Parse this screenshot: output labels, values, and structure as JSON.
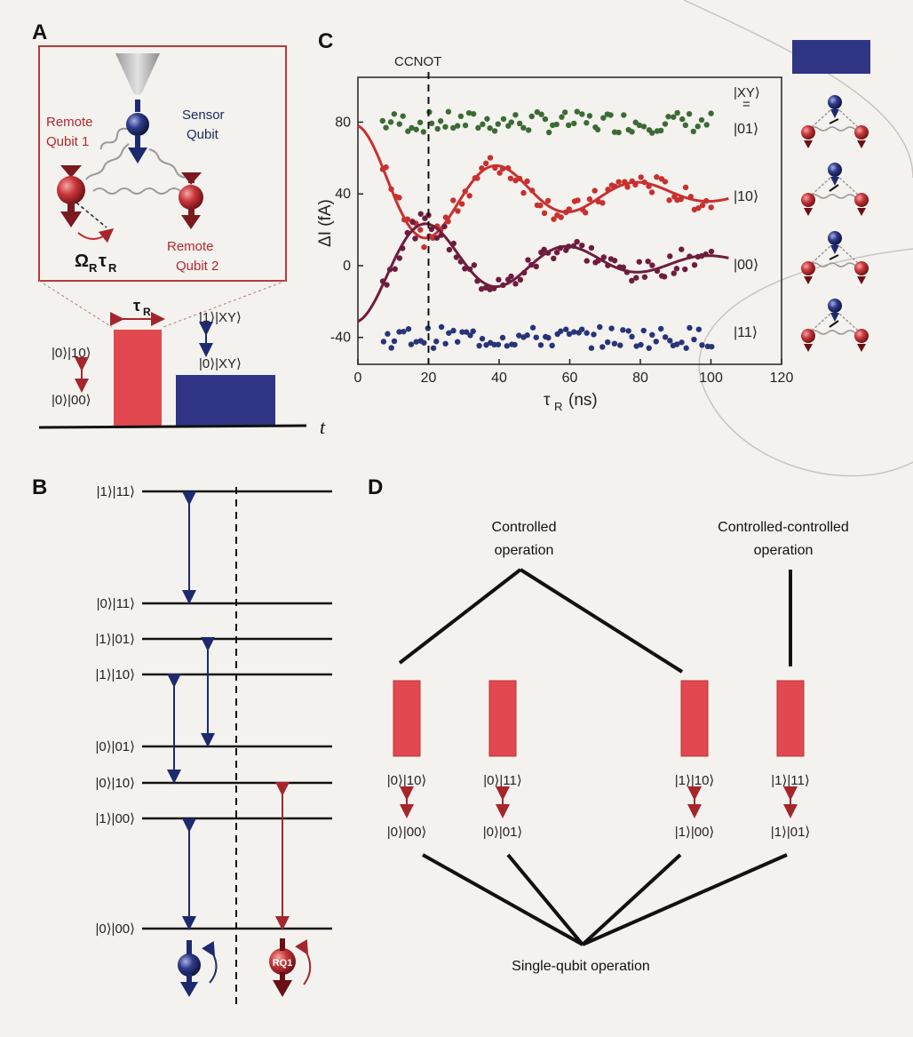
{
  "panels": {
    "a": "A",
    "b": "B",
    "c": "C",
    "d": "D"
  },
  "panel_a": {
    "sensor_label_1": "Sensor",
    "sensor_label_2": "Qubit",
    "remote1_label_1": "Remote",
    "remote1_label_2": "Qubit 1",
    "remote2_label_1": "Remote",
    "remote2_label_2": "Qubit 2",
    "omega_main": "Ω",
    "omega_sub": "R",
    "tau_main": "τ",
    "tau_sub": "R",
    "pulse_tau_main": "τ",
    "pulse_tau_sub": "R",
    "red_state_top": "|0⟩|10⟩",
    "red_state_bottom": "|0⟩|00⟩",
    "blue_state_top": "|1⟩|XY⟩",
    "blue_state_bottom": "|0⟩|XY⟩",
    "time_axis": "t",
    "colors": {
      "frame": "#b43a3a",
      "red_pulse": "#e2484f",
      "blue_pulse": "#2f3584"
    }
  },
  "panel_b": {
    "levels": [
      "|1⟩|11⟩",
      "|0⟩|11⟩",
      "|1⟩|01⟩",
      "|1⟩|10⟩",
      "|0⟩|01⟩",
      "|0⟩|10⟩",
      "|1⟩|00⟩",
      "|0⟩|00⟩"
    ],
    "rq1_label": "RQ1",
    "colors": {
      "sensor": "#1e2a6e",
      "remote": "#a4262c"
    }
  },
  "chart_data": {
    "type": "scatter",
    "title": "CCNOT",
    "xlabel_main": "τ",
    "xlabel_sub": "R",
    "xlabel_unit": "(ns)",
    "ylabel": "ΔI (fA)",
    "xlim": [
      0,
      120
    ],
    "ylim": [
      -55,
      105
    ],
    "xticks": [
      "0",
      "20",
      "40",
      "60",
      "80",
      "100",
      "120"
    ],
    "yticks": [
      "-40",
      "0",
      "40",
      "80"
    ],
    "marker_x": 20,
    "state_header": "|XY⟩",
    "state_eq": "=",
    "series": [
      {
        "name": "|01⟩",
        "color": "#3b6b35",
        "level": 80,
        "noise": 6,
        "fit": false
      },
      {
        "name": "|10⟩",
        "color": "#c8302f",
        "level": 40,
        "fit": true,
        "amp": -38,
        "decay": 45,
        "period": 40,
        "phase": 0
      },
      {
        "name": "|00⟩",
        "color": "#6e1c3e",
        "level": 2,
        "fit": true,
        "amp": 33,
        "decay": 45,
        "period": 40,
        "phase": 0
      },
      {
        "name": "|11⟩",
        "color": "#28347a",
        "level": -40,
        "noise": 6,
        "fit": false
      }
    ],
    "x_start": 7,
    "x_end": 100,
    "points_per_series": 80
  },
  "panel_d": {
    "controlled": [
      "Controlled",
      "operation"
    ],
    "cc": [
      "Controlled-controlled",
      "operation"
    ],
    "single": "Single-qubit operation",
    "pulses": [
      {
        "top": "|0⟩|10⟩",
        "bottom": "|0⟩|00⟩"
      },
      {
        "top": "|0⟩|11⟩",
        "bottom": "|0⟩|01⟩"
      },
      {
        "top": "|1⟩|10⟩",
        "bottom": "|1⟩|00⟩"
      },
      {
        "top": "|1⟩|11⟩",
        "bottom": "|1⟩|01⟩"
      }
    ]
  }
}
